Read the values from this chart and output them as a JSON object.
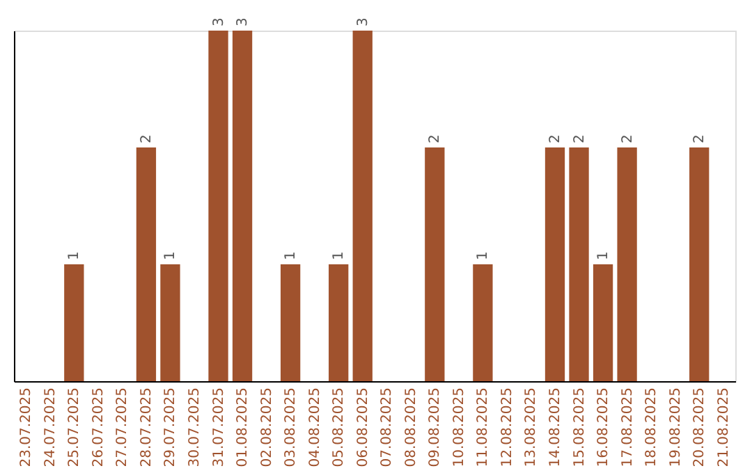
{
  "chart_data": {
    "type": "bar",
    "categories": [
      "23.07.2025",
      "24.07.2025",
      "25.07.2025",
      "26.07.2025",
      "27.07.2025",
      "28.07.2025",
      "29.07.2025",
      "30.07.2025",
      "31.07.2025",
      "01.08.2025",
      "02.08.2025",
      "03.08.2025",
      "04.08.2025",
      "05.08.2025",
      "06.08.2025",
      "07.08.2025",
      "08.08.2025",
      "09.08.2025",
      "10.08.2025",
      "11.08.2025",
      "12.08.2025",
      "13.08.2025",
      "14.08.2025",
      "15.08.2025",
      "16.08.2025",
      "17.08.2025",
      "18.08.2025",
      "19.08.2025",
      "20.08.2025",
      "21.08.2025"
    ],
    "values": [
      null,
      null,
      1,
      null,
      null,
      2,
      1,
      null,
      3,
      3,
      null,
      1,
      null,
      1,
      3,
      null,
      null,
      2,
      null,
      1,
      null,
      null,
      2,
      2,
      1,
      2,
      null,
      null,
      2,
      null
    ],
    "color": "#a0522d",
    "ylim": [
      0,
      3
    ],
    "data_labels": true,
    "tick_labels": "x",
    "grid": false
  }
}
